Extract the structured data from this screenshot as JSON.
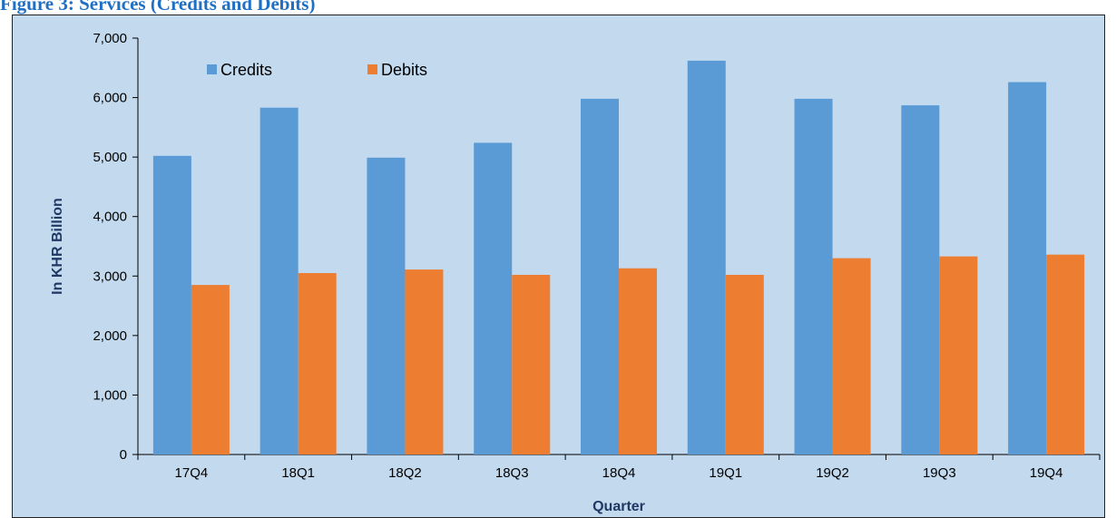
{
  "figure_title": "Figure 3: Services (Credits and Debits)",
  "colors": {
    "credits": "#5b9bd5",
    "debits": "#ed7d31",
    "background": "#c2d9ee",
    "axis_title": "#1f3864"
  },
  "chart_data": {
    "type": "bar",
    "title": "",
    "xlabel": "Quarter",
    "ylabel": "In KHR Billion",
    "ylim": [
      0,
      7000
    ],
    "yticks": [
      0,
      1000,
      2000,
      3000,
      4000,
      5000,
      6000,
      7000
    ],
    "ytick_labels": [
      "0",
      "1,000",
      "2,000",
      "3,000",
      "4,000",
      "5,000",
      "6,000",
      "7,000"
    ],
    "grid": false,
    "legend_position": "top-left",
    "categories": [
      "17Q4",
      "18Q1",
      "18Q2",
      "18Q3",
      "18Q4",
      "19Q1",
      "19Q2",
      "19Q3",
      "19Q4"
    ],
    "series": [
      {
        "name": "Credits",
        "values": [
          5020,
          5830,
          4990,
          5240,
          5980,
          6620,
          5980,
          5870,
          6260
        ]
      },
      {
        "name": "Debits",
        "values": [
          2850,
          3050,
          3110,
          3020,
          3130,
          3020,
          3300,
          3330,
          3360
        ]
      }
    ]
  }
}
